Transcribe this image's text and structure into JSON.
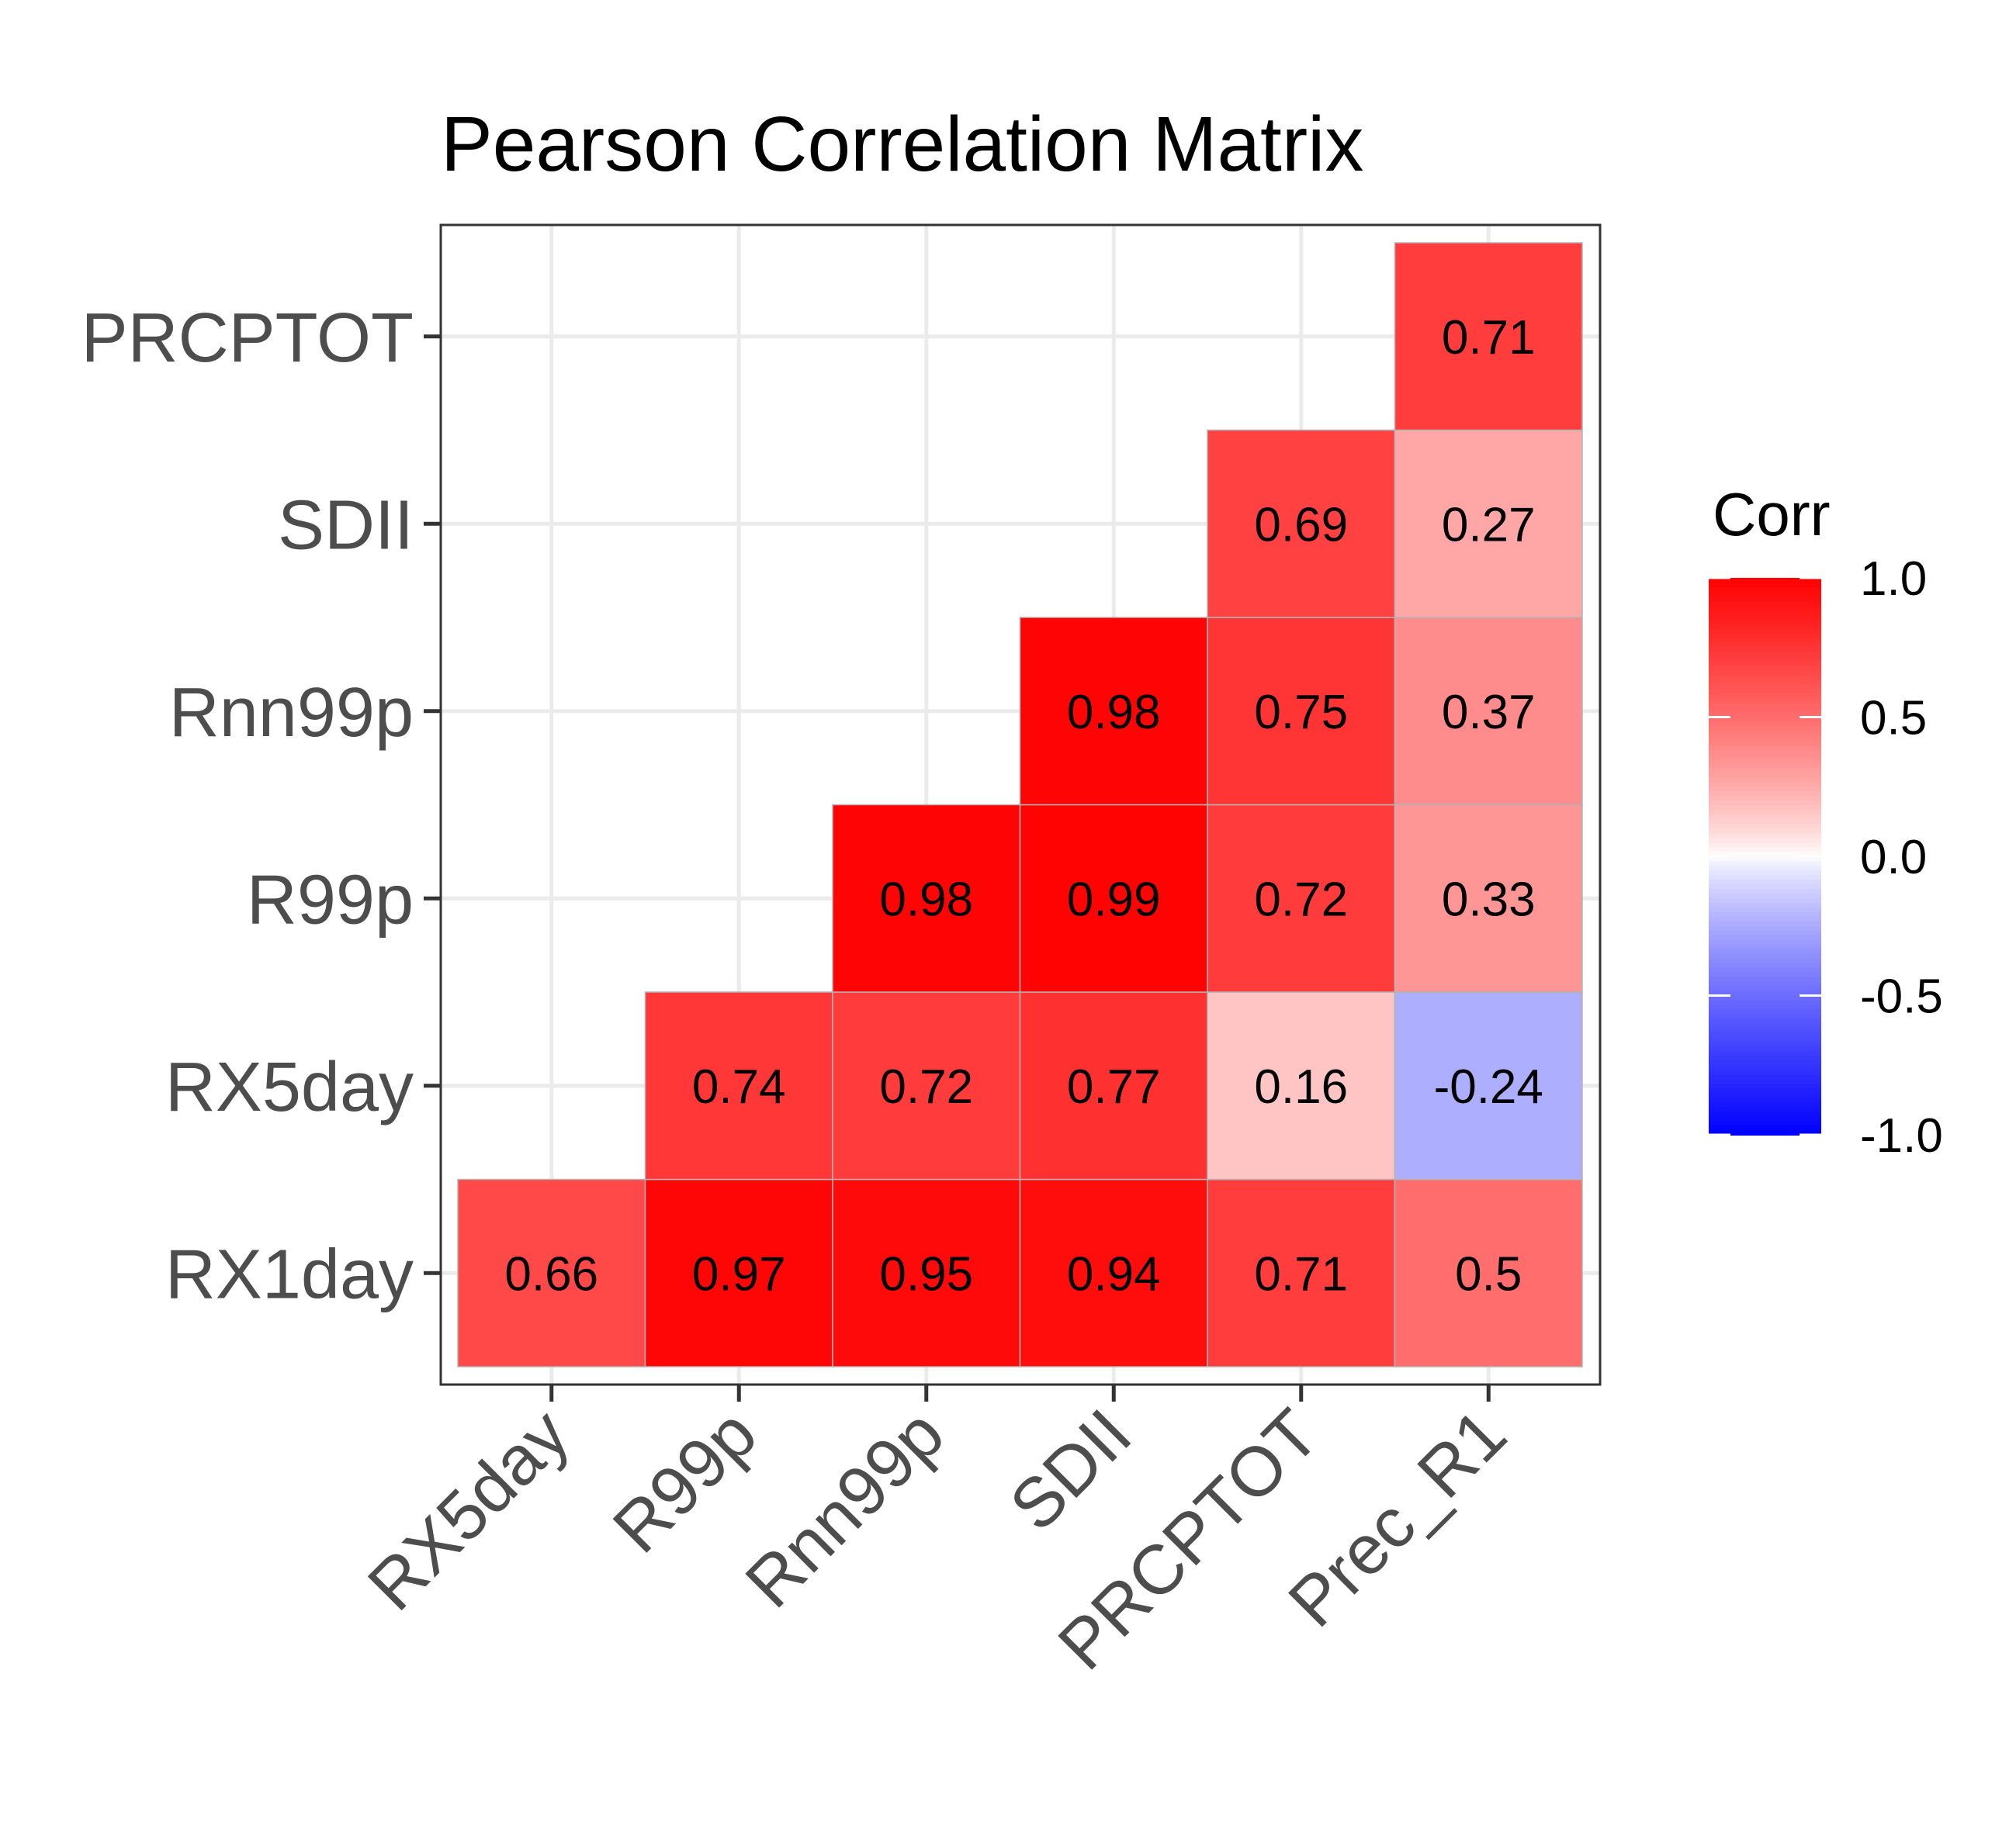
{
  "chart_data": {
    "type": "heatmap",
    "title": "Pearson Correlation Matrix",
    "x_categories": [
      "RX5day",
      "R99p",
      "Rnn99p",
      "SDII",
      "PRCPTOT",
      "Prec_R1"
    ],
    "y_categories": [
      "RX1day",
      "RX5day",
      "R99p",
      "Rnn99p",
      "SDII",
      "PRCPTOT"
    ],
    "cells": [
      {
        "x": "RX5day",
        "y": "RX1day",
        "value": 0.66,
        "label": "0.66"
      },
      {
        "x": "R99p",
        "y": "RX1day",
        "value": 0.97,
        "label": "0.97"
      },
      {
        "x": "Rnn99p",
        "y": "RX1day",
        "value": 0.95,
        "label": "0.95"
      },
      {
        "x": "SDII",
        "y": "RX1day",
        "value": 0.94,
        "label": "0.94"
      },
      {
        "x": "PRCPTOT",
        "y": "RX1day",
        "value": 0.71,
        "label": "0.71"
      },
      {
        "x": "Prec_R1",
        "y": "RX1day",
        "value": 0.5,
        "label": "0.5"
      },
      {
        "x": "R99p",
        "y": "RX5day",
        "value": 0.74,
        "label": "0.74"
      },
      {
        "x": "Rnn99p",
        "y": "RX5day",
        "value": 0.72,
        "label": "0.72"
      },
      {
        "x": "SDII",
        "y": "RX5day",
        "value": 0.77,
        "label": "0.77"
      },
      {
        "x": "PRCPTOT",
        "y": "RX5day",
        "value": 0.16,
        "label": "0.16"
      },
      {
        "x": "Prec_R1",
        "y": "RX5day",
        "value": -0.24,
        "label": "-0.24"
      },
      {
        "x": "Rnn99p",
        "y": "R99p",
        "value": 0.98,
        "label": "0.98"
      },
      {
        "x": "SDII",
        "y": "R99p",
        "value": 0.99,
        "label": "0.99"
      },
      {
        "x": "PRCPTOT",
        "y": "R99p",
        "value": 0.72,
        "label": "0.72"
      },
      {
        "x": "Prec_R1",
        "y": "R99p",
        "value": 0.33,
        "label": "0.33"
      },
      {
        "x": "SDII",
        "y": "Rnn99p",
        "value": 0.98,
        "label": "0.98"
      },
      {
        "x": "PRCPTOT",
        "y": "Rnn99p",
        "value": 0.75,
        "label": "0.75"
      },
      {
        "x": "Prec_R1",
        "y": "Rnn99p",
        "value": 0.37,
        "label": "0.37"
      },
      {
        "x": "PRCPTOT",
        "y": "SDII",
        "value": 0.69,
        "label": "0.69"
      },
      {
        "x": "Prec_R1",
        "y": "SDII",
        "value": 0.27,
        "label": "0.27"
      },
      {
        "x": "Prec_R1",
        "y": "PRCPTOT",
        "value": 0.71,
        "label": "0.71"
      }
    ],
    "color_scale": {
      "low": "#0000ff",
      "mid": "#ffffff",
      "high": "#ff0000",
      "limits": [
        -1.0,
        1.0
      ]
    },
    "legend": {
      "title": "Corr",
      "ticks": [
        1.0,
        0.5,
        0.0,
        -0.5,
        -1.0
      ],
      "tick_labels": [
        "1.0",
        "0.5",
        "0.0",
        "-0.5",
        "-1.0"
      ],
      "position": "right"
    },
    "grid": true
  }
}
